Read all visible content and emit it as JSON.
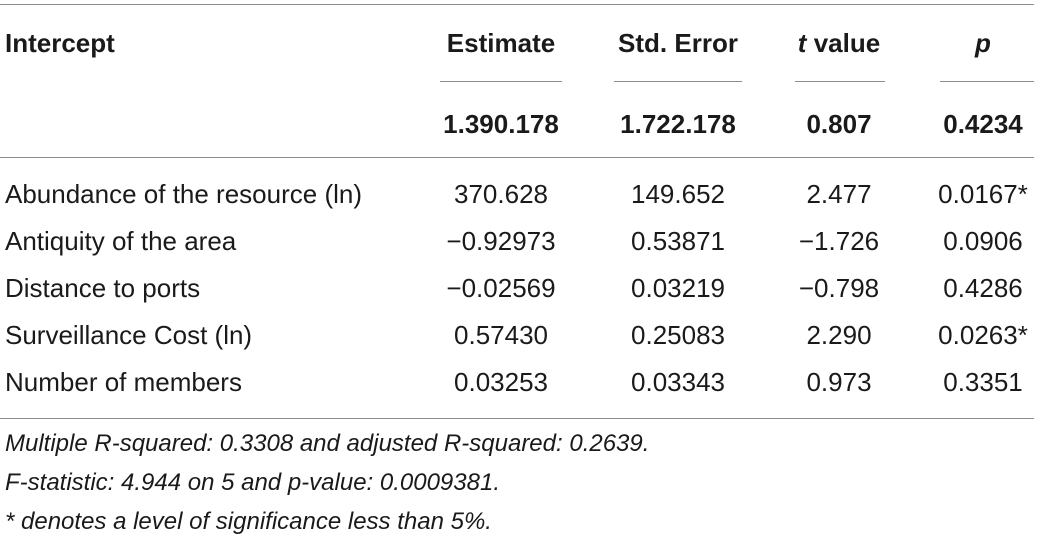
{
  "table": {
    "headers": {
      "intercept": "Intercept",
      "estimate": "Estimate",
      "std_error": "Std. Error",
      "t_italic": "t",
      "t_rest": " value",
      "p": "p"
    },
    "intercept_row": {
      "estimate": "1.390.178",
      "std_error": "1.722.178",
      "t_value": "0.807",
      "p": "0.4234"
    },
    "rows": [
      {
        "label": "Abundance of the resource (ln)",
        "estimate": "370.628",
        "std_error": "149.652",
        "t_value": "2.477",
        "p": "0.0167*"
      },
      {
        "label": "Antiquity of the area",
        "estimate": "−0.92973",
        "std_error": "0.53871",
        "t_value": "−1.726",
        "p": "0.0906"
      },
      {
        "label": "Distance to ports",
        "estimate": "−0.02569",
        "std_error": "0.03219",
        "t_value": "−0.798",
        "p": "0.4286"
      },
      {
        "label": "Surveillance Cost (ln)",
        "estimate": "0.57430",
        "std_error": "0.25083",
        "t_value": "2.290",
        "p": "0.0263*"
      },
      {
        "label": "Number of members",
        "estimate": "0.03253",
        "std_error": "0.03343",
        "t_value": "0.973",
        "p": "0.3351"
      }
    ],
    "footnotes": [
      "Multiple R-squared: 0.3308 and adjusted R-squared: 0.2639.",
      "F-statistic: 4.944 on 5 and p-value: 0.0009381.",
      "* denotes a level of significance less than 5%."
    ]
  }
}
